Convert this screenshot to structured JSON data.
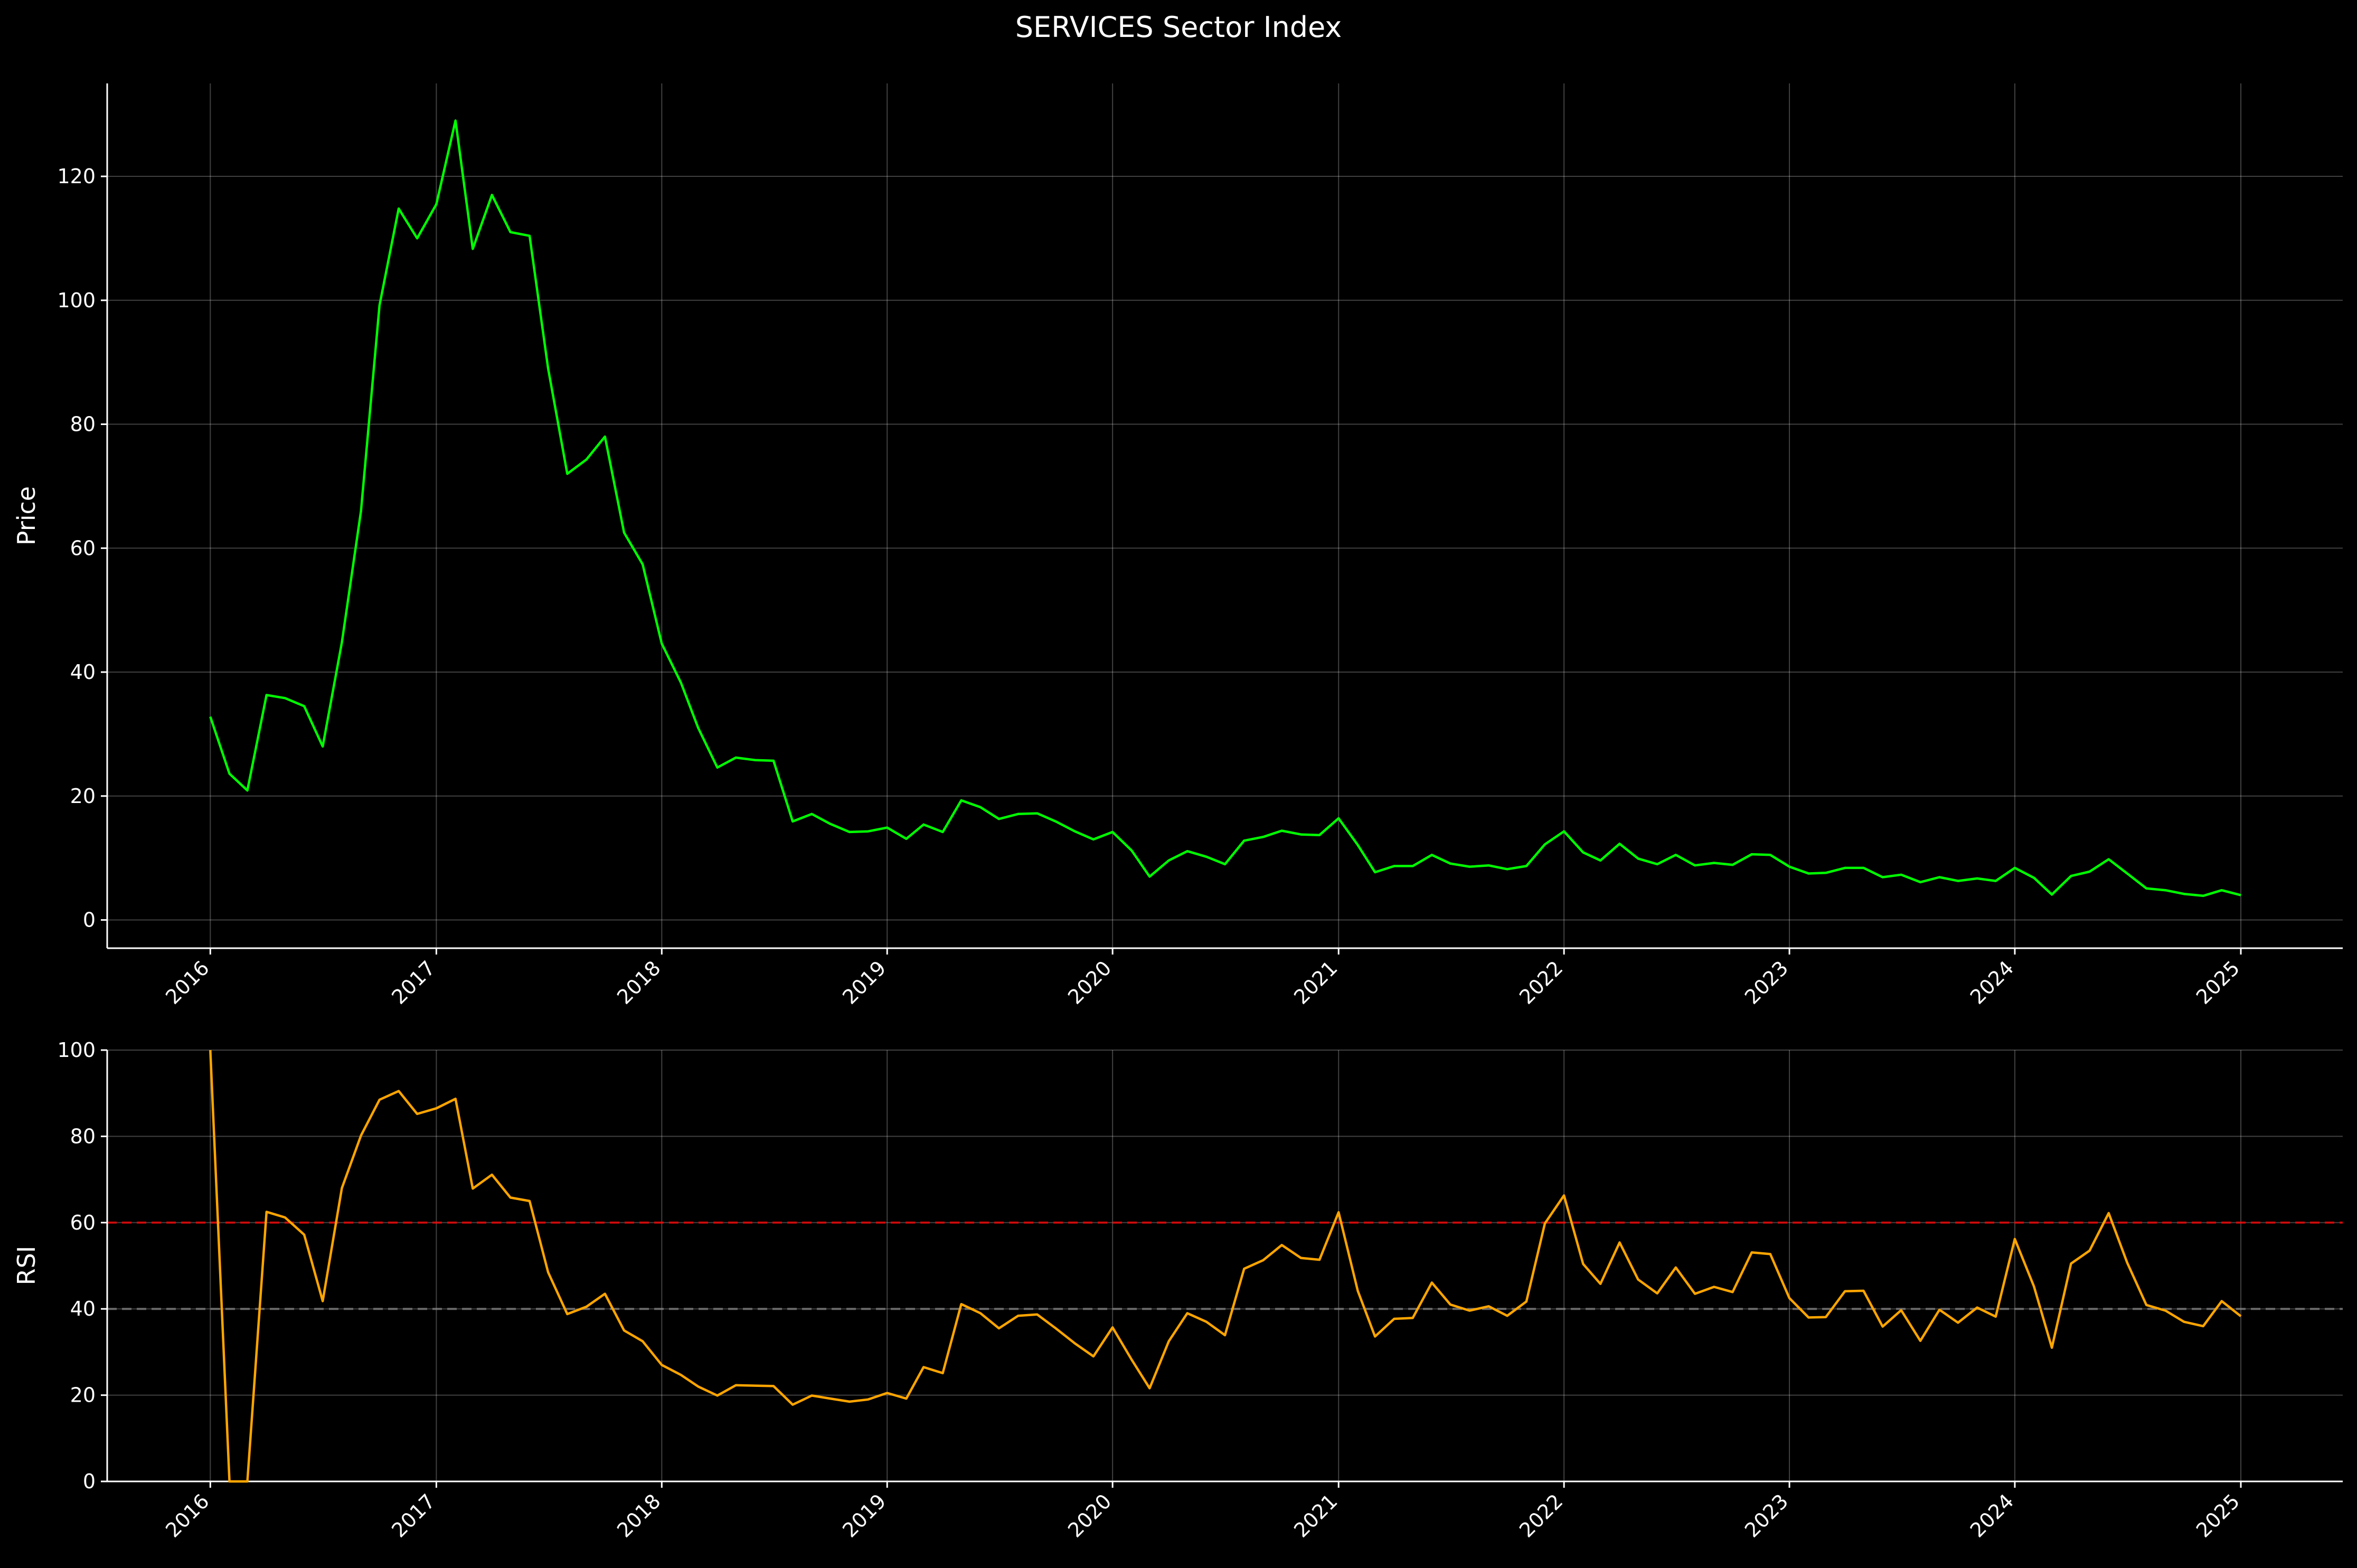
{
  "title": "SERVICES Sector Index",
  "colors": {
    "background": "#000000",
    "price_line": "#00ff00",
    "rsi_line": "#ffa500",
    "overbought_line": "#ff0000",
    "oversold_line": "#808080",
    "axis": "#ffffff",
    "grid": "#ffffff"
  },
  "chart_data": [
    {
      "type": "line",
      "ylabel": "Price",
      "xlabel": "",
      "ylim": [
        -2,
        135
      ],
      "xlim": [
        "2015-07-18",
        "2025-06-15"
      ],
      "yticks": [
        0,
        20,
        40,
        60,
        80,
        100,
        120
      ],
      "xticks": [
        "2016",
        "2017",
        "2018",
        "2019",
        "2020",
        "2021",
        "2022",
        "2023",
        "2024",
        "2025"
      ],
      "grid": true,
      "series": [
        {
          "values": [
            {
              "x": "2016-01",
              "y": 32.8
            },
            {
              "x": "2016-02",
              "y": 23.6
            },
            {
              "x": "2016-03",
              "y": 20.9
            },
            {
              "x": "2016-04",
              "y": 36.3
            },
            {
              "x": "2016-05",
              "y": 35.8
            },
            {
              "x": "2016-06",
              "y": 34.5
            },
            {
              "x": "2016-07",
              "y": 28.0
            },
            {
              "x": "2016-08",
              "y": 44.8
            },
            {
              "x": "2016-09",
              "y": 66.0
            },
            {
              "x": "2016-10",
              "y": 99.2
            },
            {
              "x": "2016-11",
              "y": 114.8
            },
            {
              "x": "2016-12",
              "y": 110.0
            },
            {
              "x": "2017-01",
              "y": 115.5
            },
            {
              "x": "2017-02",
              "y": 129.0
            },
            {
              "x": "2017-03",
              "y": 108.3
            },
            {
              "x": "2017-04",
              "y": 117.0
            },
            {
              "x": "2017-05",
              "y": 111.0
            },
            {
              "x": "2017-06",
              "y": 110.4
            },
            {
              "x": "2017-07",
              "y": 89.0
            },
            {
              "x": "2017-08",
              "y": 72.0
            },
            {
              "x": "2017-09",
              "y": 74.3
            },
            {
              "x": "2017-10",
              "y": 78.0
            },
            {
              "x": "2017-11",
              "y": 62.5
            },
            {
              "x": "2017-12",
              "y": 57.4
            },
            {
              "x": "2018-01",
              "y": 44.6
            },
            {
              "x": "2018-02",
              "y": 38.3
            },
            {
              "x": "2018-03",
              "y": 31.0
            },
            {
              "x": "2018-04",
              "y": 24.6
            },
            {
              "x": "2018-05",
              "y": 26.2
            },
            {
              "x": "2018-06",
              "y": 25.8
            },
            {
              "x": "2018-07",
              "y": 25.7
            },
            {
              "x": "2018-08",
              "y": 15.9
            },
            {
              "x": "2018-09",
              "y": 17.1
            },
            {
              "x": "2018-10",
              "y": 15.5
            },
            {
              "x": "2018-11",
              "y": 14.2
            },
            {
              "x": "2018-12",
              "y": 14.3
            },
            {
              "x": "2019-01",
              "y": 14.9
            },
            {
              "x": "2019-02",
              "y": 13.1
            },
            {
              "x": "2019-03",
              "y": 15.4
            },
            {
              "x": "2019-04",
              "y": 14.2
            },
            {
              "x": "2019-05",
              "y": 19.3
            },
            {
              "x": "2019-06",
              "y": 18.2
            },
            {
              "x": "2019-07",
              "y": 16.3
            },
            {
              "x": "2019-08",
              "y": 17.1
            },
            {
              "x": "2019-09",
              "y": 17.2
            },
            {
              "x": "2019-10",
              "y": 15.9
            },
            {
              "x": "2019-11",
              "y": 14.3
            },
            {
              "x": "2019-12",
              "y": 13.0
            },
            {
              "x": "2020-01",
              "y": 14.2
            },
            {
              "x": "2020-02",
              "y": 11.2
            },
            {
              "x": "2020-03",
              "y": 7.0
            },
            {
              "x": "2020-04",
              "y": 9.6
            },
            {
              "x": "2020-05",
              "y": 11.1
            },
            {
              "x": "2020-06",
              "y": 10.2
            },
            {
              "x": "2020-07",
              "y": 9.0
            },
            {
              "x": "2020-08",
              "y": 12.8
            },
            {
              "x": "2020-09",
              "y": 13.4
            },
            {
              "x": "2020-10",
              "y": 14.4
            },
            {
              "x": "2020-11",
              "y": 13.8
            },
            {
              "x": "2020-12",
              "y": 13.7
            },
            {
              "x": "2021-01",
              "y": 16.4
            },
            {
              "x": "2021-02",
              "y": 12.1
            },
            {
              "x": "2021-03",
              "y": 7.7
            },
            {
              "x": "2021-04",
              "y": 8.7
            },
            {
              "x": "2021-05",
              "y": 8.7
            },
            {
              "x": "2021-06",
              "y": 10.5
            },
            {
              "x": "2021-07",
              "y": 9.1
            },
            {
              "x": "2021-08",
              "y": 8.6
            },
            {
              "x": "2021-09",
              "y": 8.8
            },
            {
              "x": "2021-10",
              "y": 8.2
            },
            {
              "x": "2021-11",
              "y": 8.7
            },
            {
              "x": "2021-12",
              "y": 12.2
            },
            {
              "x": "2022-01",
              "y": 14.3
            },
            {
              "x": "2022-02",
              "y": 10.9
            },
            {
              "x": "2022-03",
              "y": 9.6
            },
            {
              "x": "2022-04",
              "y": 12.3
            },
            {
              "x": "2022-05",
              "y": 9.9
            },
            {
              "x": "2022-06",
              "y": 9.0
            },
            {
              "x": "2022-07",
              "y": 10.5
            },
            {
              "x": "2022-08",
              "y": 8.8
            },
            {
              "x": "2022-09",
              "y": 9.2
            },
            {
              "x": "2022-10",
              "y": 8.9
            },
            {
              "x": "2022-11",
              "y": 10.6
            },
            {
              "x": "2022-12",
              "y": 10.5
            },
            {
              "x": "2023-01",
              "y": 8.6
            },
            {
              "x": "2023-02",
              "y": 7.5
            },
            {
              "x": "2023-03",
              "y": 7.6
            },
            {
              "x": "2023-04",
              "y": 8.4
            },
            {
              "x": "2023-05",
              "y": 8.4
            },
            {
              "x": "2023-06",
              "y": 6.9
            },
            {
              "x": "2023-07",
              "y": 7.3
            },
            {
              "x": "2023-08",
              "y": 6.1
            },
            {
              "x": "2023-09",
              "y": 6.9
            },
            {
              "x": "2023-10",
              "y": 6.3
            },
            {
              "x": "2023-11",
              "y": 6.7
            },
            {
              "x": "2023-12",
              "y": 6.3
            },
            {
              "x": "2024-01",
              "y": 8.4
            },
            {
              "x": "2024-02",
              "y": 6.8
            },
            {
              "x": "2024-03",
              "y": 4.1
            },
            {
              "x": "2024-04",
              "y": 7.1
            },
            {
              "x": "2024-05",
              "y": 7.8
            },
            {
              "x": "2024-06",
              "y": 9.8
            },
            {
              "x": "2024-07",
              "y": 7.5
            },
            {
              "x": "2024-08",
              "y": 5.1
            },
            {
              "x": "2024-09",
              "y": 4.8
            },
            {
              "x": "2024-10",
              "y": 4.2
            },
            {
              "x": "2024-11",
              "y": 3.9
            },
            {
              "x": "2024-12",
              "y": 4.8
            },
            {
              "x": "2025-01",
              "y": 4.0
            }
          ]
        }
      ]
    },
    {
      "type": "line",
      "ylabel": "RSI",
      "xlabel": "",
      "ylim": [
        0,
        100
      ],
      "xlim": [
        "2015-07-18",
        "2025-06-15"
      ],
      "yticks": [
        0,
        20,
        40,
        60,
        80,
        100
      ],
      "xticks": [
        "2016",
        "2017",
        "2018",
        "2019",
        "2020",
        "2021",
        "2022",
        "2023",
        "2024",
        "2025"
      ],
      "grid": true,
      "reference_lines": [
        {
          "y": 60,
          "style": "dashed",
          "color": "#ff0000"
        },
        {
          "y": 40,
          "style": "dashed",
          "color": "#808080"
        }
      ],
      "series": [
        {
          "values": [
            {
              "x": "2016-01",
              "y": 100
            },
            {
              "x": "2016-02",
              "y": 0
            },
            {
              "x": "2016-03",
              "y": 0
            },
            {
              "x": "2016-04",
              "y": 62.5
            },
            {
              "x": "2016-05",
              "y": 61.2
            },
            {
              "x": "2016-06",
              "y": 57.2
            },
            {
              "x": "2016-07",
              "y": 41.8
            },
            {
              "x": "2016-08",
              "y": 68.0
            },
            {
              "x": "2016-09",
              "y": 80.2
            },
            {
              "x": "2016-10",
              "y": 88.5
            },
            {
              "x": "2016-11",
              "y": 90.5
            },
            {
              "x": "2016-12",
              "y": 85.2
            },
            {
              "x": "2017-01",
              "y": 86.5
            },
            {
              "x": "2017-02",
              "y": 88.7
            },
            {
              "x": "2017-03",
              "y": 67.9
            },
            {
              "x": "2017-04",
              "y": 71.1
            },
            {
              "x": "2017-05",
              "y": 65.8
            },
            {
              "x": "2017-06",
              "y": 65.0
            },
            {
              "x": "2017-07",
              "y": 48.5
            },
            {
              "x": "2017-08",
              "y": 38.8
            },
            {
              "x": "2017-09",
              "y": 40.5
            },
            {
              "x": "2017-10",
              "y": 43.5
            },
            {
              "x": "2017-11",
              "y": 35.0
            },
            {
              "x": "2017-12",
              "y": 32.5
            },
            {
              "x": "2018-01",
              "y": 27.0
            },
            {
              "x": "2018-02",
              "y": 24.7
            },
            {
              "x": "2018-03",
              "y": 22.0
            },
            {
              "x": "2018-04",
              "y": 19.9
            },
            {
              "x": "2018-05",
              "y": 22.3
            },
            {
              "x": "2018-06",
              "y": 22.2
            },
            {
              "x": "2018-07",
              "y": 22.1
            },
            {
              "x": "2018-08",
              "y": 17.8
            },
            {
              "x": "2018-09",
              "y": 19.9
            },
            {
              "x": "2018-10",
              "y": 19.2
            },
            {
              "x": "2018-11",
              "y": 18.5
            },
            {
              "x": "2018-12",
              "y": 19.0
            },
            {
              "x": "2019-01",
              "y": 20.5
            },
            {
              "x": "2019-02",
              "y": 19.2
            },
            {
              "x": "2019-03",
              "y": 26.5
            },
            {
              "x": "2019-04",
              "y": 25.1
            },
            {
              "x": "2019-05",
              "y": 41.1
            },
            {
              "x": "2019-06",
              "y": 39.0
            },
            {
              "x": "2019-07",
              "y": 35.5
            },
            {
              "x": "2019-08",
              "y": 38.4
            },
            {
              "x": "2019-09",
              "y": 38.7
            },
            {
              "x": "2019-10",
              "y": 35.5
            },
            {
              "x": "2019-11",
              "y": 32.0
            },
            {
              "x": "2019-12",
              "y": 29.0
            },
            {
              "x": "2020-01",
              "y": 35.7
            },
            {
              "x": "2020-02",
              "y": 28.2
            },
            {
              "x": "2020-03",
              "y": 21.6
            },
            {
              "x": "2020-04",
              "y": 32.5
            },
            {
              "x": "2020-05",
              "y": 39.0
            },
            {
              "x": "2020-06",
              "y": 37.0
            },
            {
              "x": "2020-07",
              "y": 33.9
            },
            {
              "x": "2020-08",
              "y": 49.3
            },
            {
              "x": "2020-09",
              "y": 51.3
            },
            {
              "x": "2020-10",
              "y": 54.8
            },
            {
              "x": "2020-11",
              "y": 51.8
            },
            {
              "x": "2020-12",
              "y": 51.4
            },
            {
              "x": "2021-01",
              "y": 62.4
            },
            {
              "x": "2021-02",
              "y": 44.2
            },
            {
              "x": "2021-03",
              "y": 33.6
            },
            {
              "x": "2021-04",
              "y": 37.7
            },
            {
              "x": "2021-05",
              "y": 37.9
            },
            {
              "x": "2021-06",
              "y": 46.1
            },
            {
              "x": "2021-07",
              "y": 41.0
            },
            {
              "x": "2021-08",
              "y": 39.6
            },
            {
              "x": "2021-09",
              "y": 40.6
            },
            {
              "x": "2021-10",
              "y": 38.4
            },
            {
              "x": "2021-11",
              "y": 41.7
            },
            {
              "x": "2021-12",
              "y": 59.8
            },
            {
              "x": "2022-01",
              "y": 66.3
            },
            {
              "x": "2022-02",
              "y": 50.4
            },
            {
              "x": "2022-03",
              "y": 45.8
            },
            {
              "x": "2022-04",
              "y": 55.4
            },
            {
              "x": "2022-05",
              "y": 46.8
            },
            {
              "x": "2022-06",
              "y": 43.6
            },
            {
              "x": "2022-07",
              "y": 49.6
            },
            {
              "x": "2022-08",
              "y": 43.5
            },
            {
              "x": "2022-09",
              "y": 45.1
            },
            {
              "x": "2022-10",
              "y": 43.9
            },
            {
              "x": "2022-11",
              "y": 53.1
            },
            {
              "x": "2022-12",
              "y": 52.7
            },
            {
              "x": "2023-01",
              "y": 42.5
            },
            {
              "x": "2023-02",
              "y": 38.0
            },
            {
              "x": "2023-03",
              "y": 38.1
            },
            {
              "x": "2023-04",
              "y": 44.1
            },
            {
              "x": "2023-05",
              "y": 44.2
            },
            {
              "x": "2023-06",
              "y": 35.9
            },
            {
              "x": "2023-07",
              "y": 39.7
            },
            {
              "x": "2023-08",
              "y": 32.6
            },
            {
              "x": "2023-09",
              "y": 39.8
            },
            {
              "x": "2023-10",
              "y": 36.8
            },
            {
              "x": "2023-11",
              "y": 40.3
            },
            {
              "x": "2023-12",
              "y": 38.2
            },
            {
              "x": "2024-01",
              "y": 56.2
            },
            {
              "x": "2024-02",
              "y": 45.2
            },
            {
              "x": "2024-03",
              "y": 31.0
            },
            {
              "x": "2024-04",
              "y": 50.5
            },
            {
              "x": "2024-05",
              "y": 53.5
            },
            {
              "x": "2024-06",
              "y": 62.2
            },
            {
              "x": "2024-07",
              "y": 50.7
            },
            {
              "x": "2024-08",
              "y": 40.9
            },
            {
              "x": "2024-09",
              "y": 39.6
            },
            {
              "x": "2024-10",
              "y": 37.0
            },
            {
              "x": "2024-11",
              "y": 36.0
            },
            {
              "x": "2024-12",
              "y": 41.8
            },
            {
              "x": "2025-01",
              "y": 38.3
            }
          ]
        }
      ]
    }
  ]
}
